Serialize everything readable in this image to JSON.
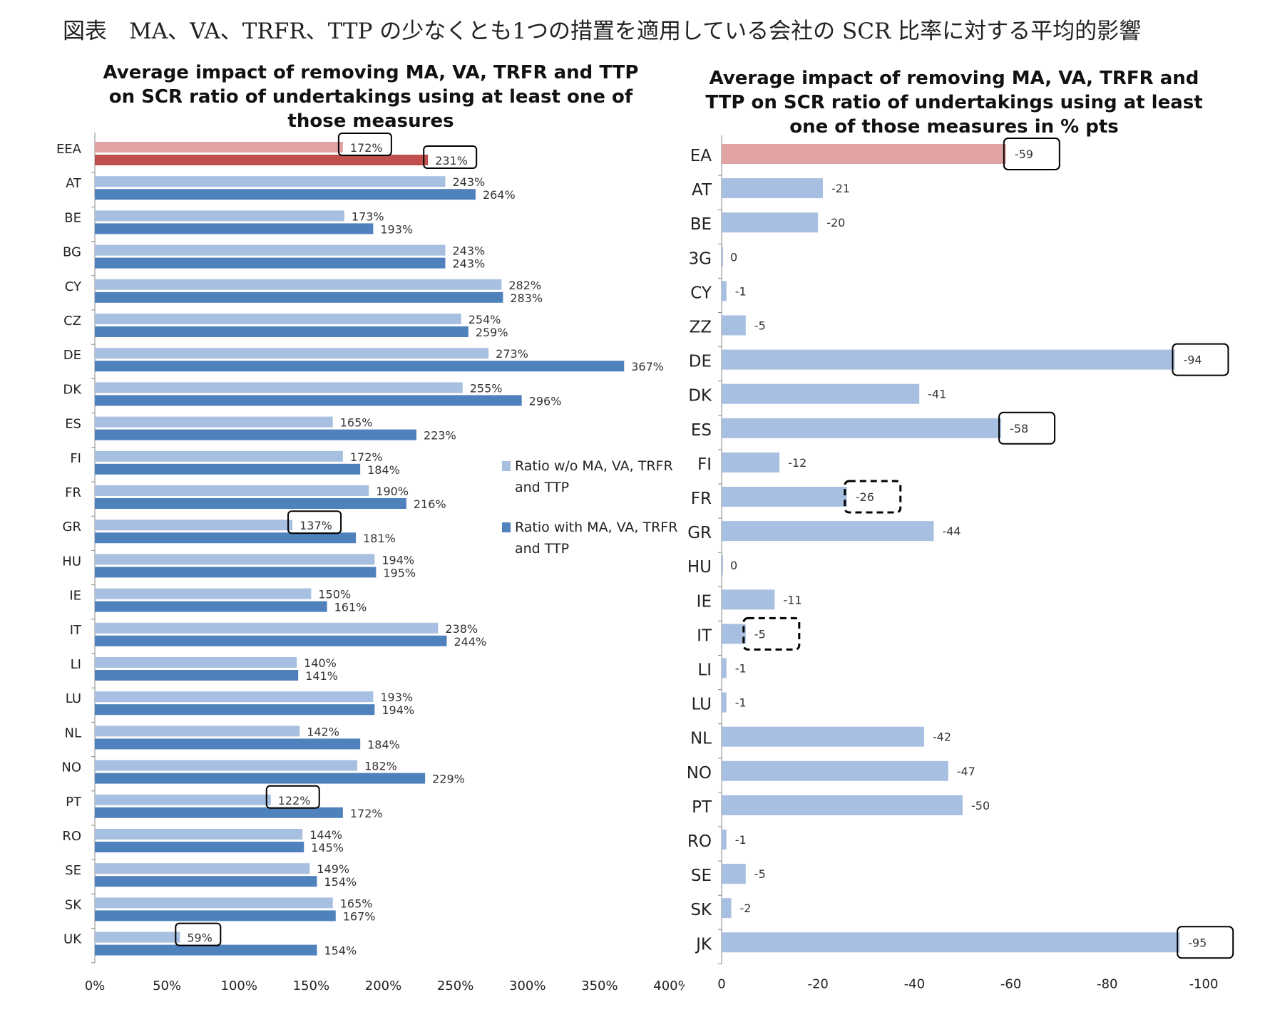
{
  "page_title": "図表　MA、VA、TRFR、TTP の少なくとも1つの措置を適用している会社の SCR 比率に対する平均的影響",
  "chart_data": [
    {
      "type": "bar",
      "orientation": "horizontal",
      "title_lines": [
        "Average impact of removing MA, VA, TRFR and TTP",
        "on SCR ratio of undertakings using at least one of",
        "those measures"
      ],
      "categories": [
        "EEA",
        "AT",
        "BE",
        "BG",
        "CY",
        "CZ",
        "DE",
        "DK",
        "ES",
        "FI",
        "FR",
        "GR",
        "HU",
        "IE",
        "IT",
        "LI",
        "LU",
        "NL",
        "NO",
        "PT",
        "RO",
        "SE",
        "SK",
        "UK"
      ],
      "series": [
        {
          "name_lines": [
            "Ratio w/o MA, VA, TRFR",
            "and TTP"
          ],
          "values": [
            172,
            243,
            173,
            243,
            282,
            254,
            273,
            255,
            165,
            172,
            190,
            137,
            194,
            150,
            238,
            140,
            193,
            142,
            182,
            122,
            144,
            149,
            165,
            59
          ],
          "labels": [
            "172%",
            "243%",
            "173%",
            "243%",
            "282%",
            "254%",
            "273%",
            "255%",
            "165%",
            "172%",
            "190%",
            "137%",
            "194%",
            "150%",
            "238%",
            "140%",
            "193%",
            "142%",
            "182%",
            "122%",
            "144%",
            "149%",
            "165%",
            "59%"
          ],
          "color": "#a7bfe0",
          "highlight_color": "#e2a3a4"
        },
        {
          "name_lines": [
            "Ratio with MA, VA, TRFR",
            "and TTP"
          ],
          "values": [
            231,
            264,
            193,
            243,
            283,
            259,
            367,
            296,
            223,
            184,
            216,
            181,
            195,
            161,
            244,
            141,
            194,
            184,
            229,
            172,
            145,
            154,
            167,
            154
          ],
          "labels": [
            "231%",
            "264%",
            "193%",
            "243%",
            "283%",
            "259%",
            "367%",
            "296%",
            "223%",
            "184%",
            "216%",
            "181%",
            "195%",
            "161%",
            "244%",
            "141%",
            "194%",
            "184%",
            "229%",
            "172%",
            "145%",
            "154%",
            "167%",
            "154%"
          ],
          "color": "#4f81bd",
          "highlight_color": "#c0504d"
        }
      ],
      "xlim": [
        0,
        400
      ],
      "xticks": [
        "0%",
        "50%",
        "100%",
        "150%",
        "200%",
        "250%",
        "300%",
        "350%",
        "400%"
      ],
      "legend_position": "right",
      "grid": false,
      "boxed_labels": [
        {
          "category": "EEA",
          "series": 0
        },
        {
          "category": "EEA",
          "series": 1
        },
        {
          "category": "GR",
          "series": 0
        },
        {
          "category": "PT",
          "series": 0
        },
        {
          "category": "UK",
          "series": 0
        }
      ]
    },
    {
      "type": "bar",
      "orientation": "horizontal",
      "title_lines": [
        "Average impact of removing MA, VA, TRFR and",
        "TTP on SCR ratio of undertakings using at least",
        "one of those measures in % pts"
      ],
      "categories": [
        "EA",
        "AT",
        "BE",
        "3G",
        "CY",
        "ZZ",
        "DE",
        "DK",
        "ES",
        "FI",
        "FR",
        "GR",
        "HU",
        "IE",
        "IT",
        "LI",
        "LU",
        "NL",
        "NO",
        "PT",
        "RO",
        "SE",
        "SK",
        "JK"
      ],
      "values": [
        -59,
        -21,
        -20,
        0,
        -1,
        -5,
        -94,
        -41,
        -58,
        -12,
        -26,
        -44,
        0,
        -11,
        -5,
        -1,
        -1,
        -42,
        -47,
        -50,
        -1,
        -5,
        -2,
        -95
      ],
      "labels": [
        "-59",
        "-21",
        "-20",
        "0",
        "-1",
        "-5",
        "-94",
        "-41",
        "-58",
        "-12",
        "-26",
        "-44",
        "0",
        "-11",
        "-5",
        "-1",
        "-1",
        "-42",
        "-47",
        "-50",
        "-1",
        "-5",
        "-2",
        "-95"
      ],
      "color": "#a7bfe0",
      "highlight_color": "#e2a3a4",
      "xlim": [
        0,
        -100
      ],
      "xticks": [
        "0",
        "-20",
        "-40",
        "-60",
        "-80",
        "-100"
      ],
      "grid": false,
      "boxed_labels": [
        {
          "category": "EA",
          "style": "solid"
        },
        {
          "category": "DE",
          "style": "solid"
        },
        {
          "category": "ES",
          "style": "solid"
        },
        {
          "category": "FR",
          "style": "dashed"
        },
        {
          "category": "IT",
          "style": "dashed"
        },
        {
          "category": "JK",
          "style": "solid"
        }
      ]
    }
  ]
}
